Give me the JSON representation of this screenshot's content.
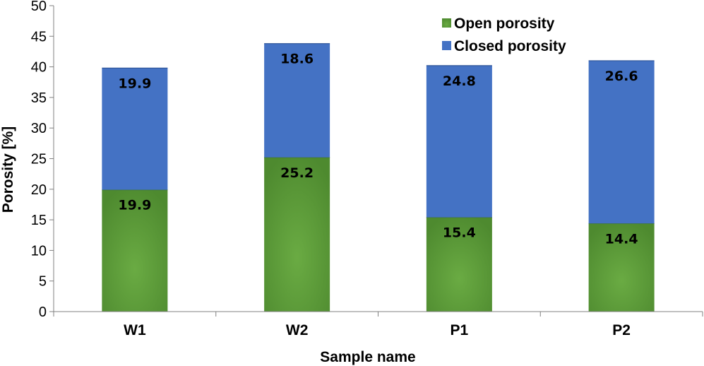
{
  "chart_data": {
    "type": "bar",
    "stacked": true,
    "categories": [
      "W1",
      "W2",
      "P1",
      "P2"
    ],
    "series": [
      {
        "name": "Open porosity",
        "values": [
          19.9,
          25.2,
          15.4,
          14.4
        ],
        "color": "#5d9b3b"
      },
      {
        "name": "Closed porosity",
        "values": [
          19.9,
          18.6,
          24.8,
          26.6
        ],
        "color": "#4472c4"
      }
    ],
    "title": "",
    "xlabel": "Sample name",
    "ylabel": "Porosity [%]",
    "ylim": [
      0,
      50
    ],
    "yticks": [
      0,
      5,
      10,
      15,
      20,
      25,
      30,
      35,
      40,
      45,
      50
    ],
    "grid": false,
    "legend": "top-right"
  }
}
